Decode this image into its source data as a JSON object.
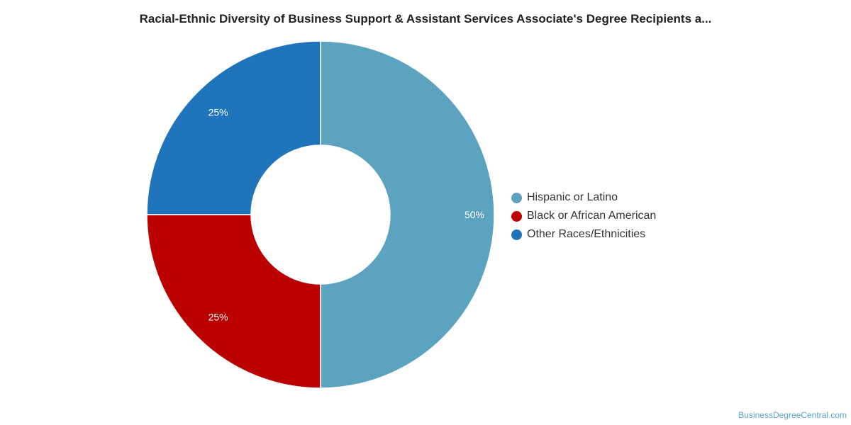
{
  "chart_data": {
    "type": "pie",
    "title": "Racial-Ethnic Diversity of Business Support & Assistant Services Associate's Degree Recipients a...",
    "donut": true,
    "categories": [
      "Hispanic or Latino",
      "Black or African American",
      "Other Races/Ethnicities"
    ],
    "values": [
      50,
      25,
      25
    ],
    "labels": [
      "50%",
      "25%",
      "25%"
    ],
    "colors": [
      "#5ca3c0",
      "#bb0000",
      "#1f74bb"
    ],
    "legend_position": "right"
  },
  "watermark": "BusinessDegreeCentral.com"
}
